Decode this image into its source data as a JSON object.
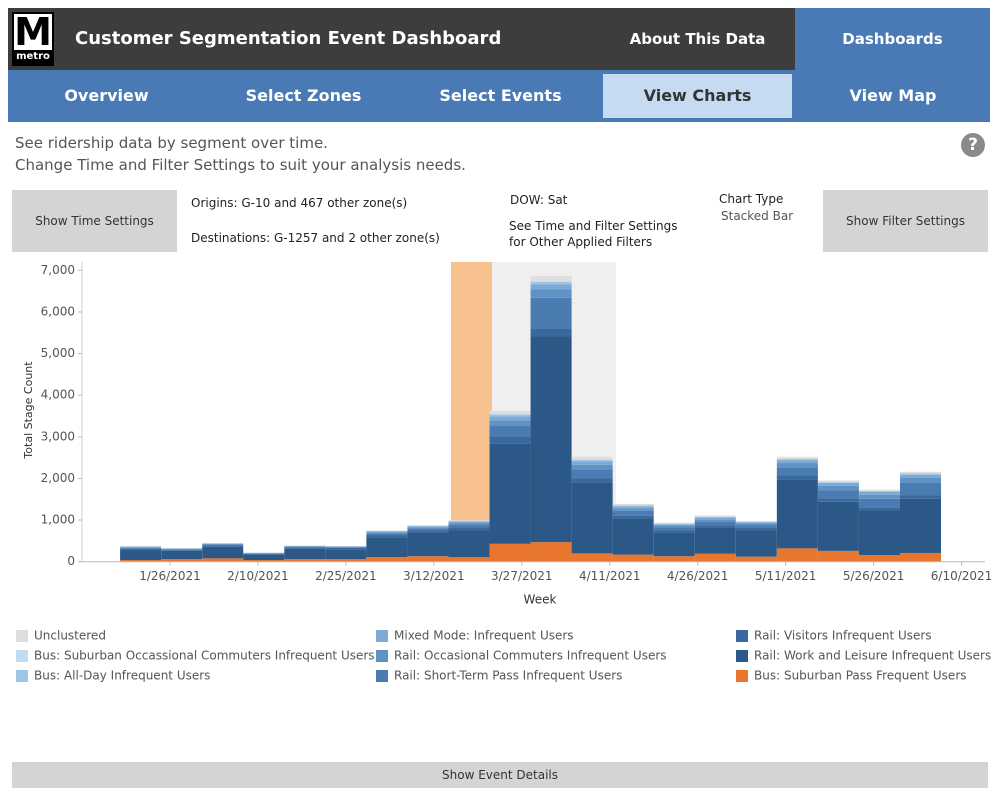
{
  "header": {
    "logo": "M",
    "logo_sub": "metro",
    "title": "Customer Segmentation Event Dashboard",
    "links": [
      "About This Data",
      "Dashboards"
    ]
  },
  "nav": [
    "Overview",
    "Select Zones",
    "Select Events",
    "View Charts",
    "View Map"
  ],
  "description": [
    "See ridership data by segment over time.",
    "Change Time and Filter Settings to suit your analysis needs."
  ],
  "help": "?",
  "controls": {
    "time_button": "Show Time Settings",
    "origins": "Origins: G-10 and 467 other zone(s)",
    "destinations": "Destinations: G-1257 and 2 other zone(s)",
    "dow": "DOW: Sat",
    "filters_note": [
      "See Time and Filter Settings",
      "for Other Applied Filters"
    ],
    "chart_type_label": "Chart Type",
    "chart_type": "Stacked Bar",
    "filter_button": "Show Filter Settings"
  },
  "chart_data": {
    "type": "bar",
    "stacked": true,
    "x_label": "Week",
    "y_label": "Total Stage Count",
    "x": [
      "1/21/2021",
      "1/28/2021",
      "2/4/2021",
      "2/11/2021",
      "2/18/2021",
      "2/25/2021",
      "3/4/2021",
      "3/11/2021",
      "3/18/2021",
      "3/25/2021",
      "4/1/2021",
      "4/8/2021",
      "4/15/2021",
      "4/22/2021",
      "4/29/2021",
      "5/6/2021",
      "5/13/2021",
      "5/20/2021",
      "5/27/2021",
      "6/3/2021"
    ],
    "xlim": [
      "1/11/2021",
      "6/14/2021"
    ],
    "xticks": [
      "1/26/2021",
      "2/10/2021",
      "2/25/2021",
      "3/12/2021",
      "3/27/2021",
      "4/11/2021",
      "4/26/2021",
      "5/11/2021",
      "5/26/2021",
      "6/10/2021"
    ],
    "ylim": [
      0,
      7200
    ],
    "yticks": [
      0,
      {
        "value": 1000,
        "label": "1,000"
      },
      {
        "value": 2000,
        "label": "2,000"
      },
      {
        "value": 3000,
        "label": "3,000"
      },
      {
        "value": 4000,
        "label": "4,000"
      },
      {
        "value": 5000,
        "label": "5,000"
      },
      {
        "value": 6000,
        "label": "6,000"
      },
      {
        "value": 7000,
        "label": "7,000"
      }
    ],
    "series": [
      {
        "name": "Unclustered",
        "color": "#dedede",
        "values": [
          10,
          5,
          10,
          5,
          5,
          5,
          10,
          20,
          20,
          70,
          120,
          60,
          40,
          30,
          30,
          20,
          50,
          40,
          30,
          40
        ]
      },
      {
        "name": "Bus: Suburban Occassional Commuters Infrequent Users",
        "color": "#bfdcf0",
        "values": [
          0,
          0,
          0,
          0,
          0,
          0,
          0,
          0,
          0,
          10,
          20,
          10,
          0,
          0,
          0,
          0,
          0,
          0,
          0,
          0
        ]
      },
      {
        "name": "Bus: All-Day Infrequent Users",
        "color": "#9ec5e5",
        "values": [
          10,
          5,
          5,
          0,
          5,
          5,
          10,
          10,
          20,
          50,
          60,
          40,
          20,
          10,
          20,
          10,
          30,
          20,
          20,
          30
        ]
      },
      {
        "name": "Mixed Mode: Infrequent Users",
        "color": "#7caad5",
        "values": [
          10,
          10,
          10,
          5,
          10,
          10,
          20,
          20,
          30,
          100,
          120,
          80,
          50,
          30,
          40,
          30,
          70,
          70,
          70,
          70
        ]
      },
      {
        "name": "Rail: Occasional Commuters Infrequent Users",
        "color": "#5f93c5",
        "values": [
          20,
          10,
          15,
          10,
          10,
          10,
          30,
          30,
          40,
          130,
          200,
          110,
          60,
          40,
          50,
          40,
          100,
          100,
          100,
          120
        ]
      },
      {
        "name": "Rail: Short-Term Pass Infrequent Users",
        "color": "#4a7cb2",
        "values": [
          20,
          20,
          20,
          10,
          20,
          20,
          40,
          50,
          60,
          250,
          750,
          220,
          120,
          80,
          100,
          70,
          200,
          200,
          200,
          310
        ]
      },
      {
        "name": "Rail: Visitors Infrequent Users",
        "color": "#3a689c",
        "values": [
          30,
          20,
          30,
          20,
          30,
          30,
          50,
          60,
          80,
          180,
          170,
          100,
          60,
          50,
          60,
          50,
          90,
          80,
          70,
          80
        ]
      },
      {
        "name": "Rail: Work and Leisure Infrequent Users",
        "color": "#2b5886",
        "values": [
          240,
          200,
          280,
          130,
          250,
          240,
          480,
          560,
          640,
          2400,
          4950,
          1700,
          870,
          570,
          620,
          640,
          1660,
          1180,
          1080,
          1300
        ]
      },
      {
        "name": "Bus: Suburban Pass Frequent Users",
        "color": "#e8762c",
        "values": [
          40,
          60,
          80,
          40,
          60,
          60,
          110,
          130,
          110,
          430,
          470,
          200,
          170,
          130,
          190,
          120,
          320,
          260,
          160,
          210
        ]
      }
    ]
  },
  "footer_button": "Show Event Details"
}
